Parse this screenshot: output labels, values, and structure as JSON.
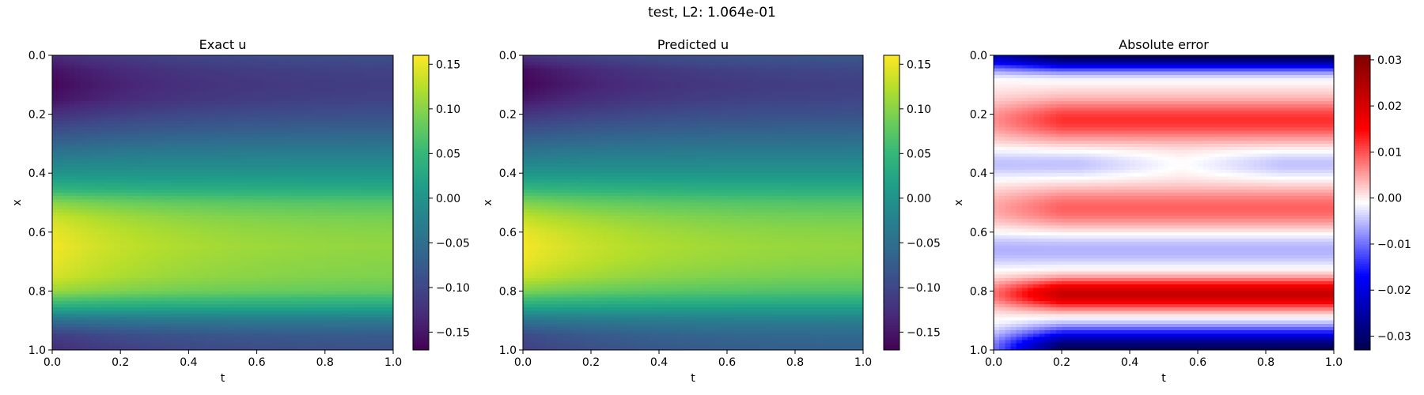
{
  "figure": {
    "suptitle": "test, L2: 1.064e-01"
  },
  "chart_data": [
    {
      "type": "heatmap",
      "title": "Exact u",
      "xlabel": "t",
      "ylabel": "x",
      "xlim": [
        0.0,
        1.0
      ],
      "ylim": [
        1.0,
        0.0
      ],
      "xticks": [
        "0.0",
        "0.2",
        "0.4",
        "0.6",
        "0.8",
        "1.0"
      ],
      "yticks": [
        "0.0",
        "0.2",
        "0.4",
        "0.6",
        "0.8",
        "1.0"
      ],
      "colormap": "viridis",
      "colorbar": {
        "range": [
          -0.17,
          0.16
        ],
        "ticks": [
          -0.15,
          -0.1,
          -0.05,
          0.0,
          0.05,
          0.1,
          0.15
        ],
        "tick_labels": [
          "−0.15",
          "−0.10",
          "−0.05",
          "0.00",
          "0.05",
          "0.10",
          "0.15"
        ]
      },
      "profile": {
        "x": [
          0.0,
          0.05,
          0.1,
          0.15,
          0.2,
          0.25,
          0.3,
          0.35,
          0.4,
          0.45,
          0.5,
          0.55,
          0.6,
          0.65,
          0.7,
          0.75,
          0.8,
          0.85,
          0.9,
          0.95,
          1.0
        ],
        "u_t0": [
          -0.13,
          -0.155,
          -0.165,
          -0.155,
          -0.125,
          -0.095,
          -0.065,
          -0.03,
          0.0,
          0.04,
          0.1,
          0.135,
          0.15,
          0.155,
          0.15,
          0.14,
          0.11,
          0.04,
          -0.05,
          -0.11,
          -0.13
        ],
        "u_t1": [
          -0.09,
          -0.105,
          -0.11,
          -0.105,
          -0.09,
          -0.07,
          -0.045,
          -0.02,
          0.0,
          0.03,
          0.07,
          0.09,
          0.1,
          0.105,
          0.1,
          0.095,
          0.08,
          0.03,
          -0.035,
          -0.075,
          -0.09
        ]
      }
    },
    {
      "type": "heatmap",
      "title": "Predicted u",
      "xlabel": "t",
      "ylabel": "x",
      "xlim": [
        0.0,
        1.0
      ],
      "ylim": [
        1.0,
        0.0
      ],
      "xticks": [
        "0.0",
        "0.2",
        "0.4",
        "0.6",
        "0.8",
        "1.0"
      ],
      "yticks": [
        "0.0",
        "0.2",
        "0.4",
        "0.6",
        "0.8",
        "1.0"
      ],
      "colormap": "viridis",
      "colorbar": {
        "range": [
          -0.17,
          0.16
        ],
        "ticks": [
          -0.15,
          -0.1,
          -0.05,
          0.0,
          0.05,
          0.1,
          0.15
        ],
        "tick_labels": [
          "−0.15",
          "−0.10",
          "−0.05",
          "0.00",
          "0.05",
          "0.10",
          "0.15"
        ]
      },
      "profile": {
        "x": [
          0.0,
          0.05,
          0.1,
          0.15,
          0.2,
          0.25,
          0.3,
          0.35,
          0.4,
          0.45,
          0.5,
          0.55,
          0.6,
          0.65,
          0.7,
          0.75,
          0.8,
          0.85,
          0.9,
          0.95,
          1.0
        ],
        "u_t0": [
          -0.12,
          -0.16,
          -0.168,
          -0.15,
          -0.12,
          -0.09,
          -0.06,
          -0.028,
          0.002,
          0.045,
          0.095,
          0.13,
          0.15,
          0.157,
          0.152,
          0.135,
          0.095,
          0.03,
          -0.045,
          -0.095,
          -0.11
        ],
        "u_t1": [
          -0.08,
          -0.1,
          -0.108,
          -0.102,
          -0.088,
          -0.068,
          -0.045,
          -0.02,
          0.002,
          0.032,
          0.068,
          0.088,
          0.1,
          0.106,
          0.101,
          0.09,
          0.068,
          0.022,
          -0.028,
          -0.058,
          -0.07
        ]
      }
    },
    {
      "type": "heatmap",
      "title": "Absolute error",
      "xlabel": "t",
      "ylabel": "x",
      "xlim": [
        0.0,
        1.0
      ],
      "ylim": [
        1.0,
        0.0
      ],
      "xticks": [
        "0.0",
        "0.2",
        "0.4",
        "0.6",
        "0.8",
        "1.0"
      ],
      "yticks": [
        "0.0",
        "0.2",
        "0.4",
        "0.6",
        "0.8",
        "1.0"
      ],
      "colormap": "seismic",
      "colorbar": {
        "range": [
          -0.033,
          0.031
        ],
        "ticks": [
          -0.03,
          -0.02,
          -0.01,
          0.0,
          0.01,
          0.02,
          0.03
        ],
        "tick_labels": [
          "−0.03",
          "−0.02",
          "−0.01",
          "0.00",
          "0.01",
          "0.02",
          "0.03"
        ]
      }
    }
  ]
}
